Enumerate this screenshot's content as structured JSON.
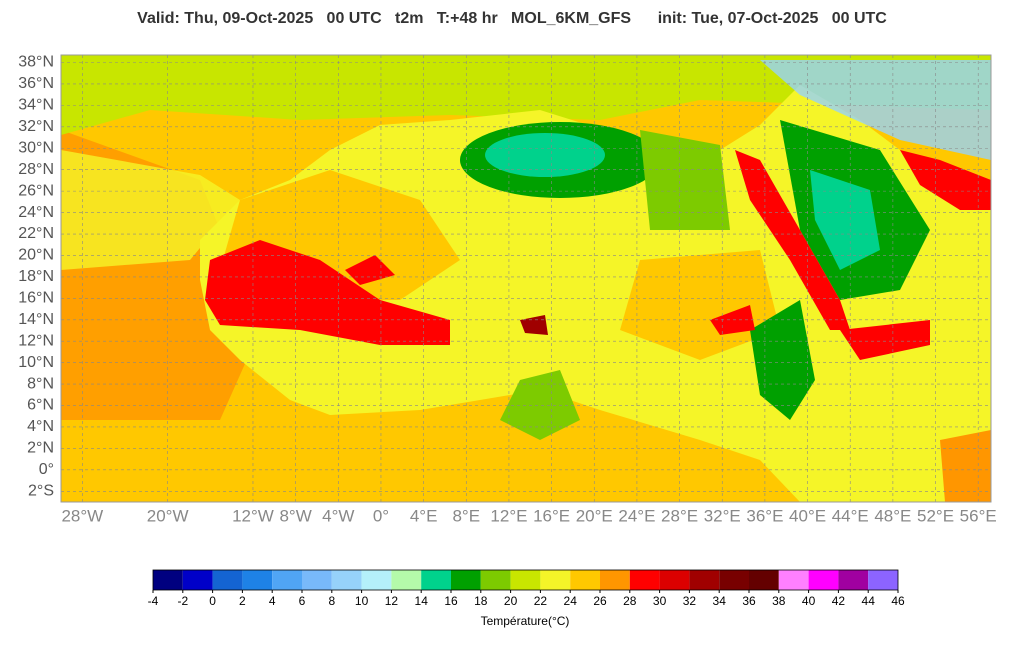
{
  "header": {
    "title": "Valid: Thu, 09-Oct-2025   00 UTC   t2m   T:+48 hr   MOL_6KM_GFS      init: Tue, 07-Oct-2025   00 UTC"
  },
  "map": {
    "lat_range": [
      -3,
      38.7
    ],
    "lon_range": [
      -30,
      57.2
    ],
    "grid": true,
    "lat_ticks": [
      {
        "value": 38,
        "label": "38°N"
      },
      {
        "value": 36,
        "label": "36°N"
      },
      {
        "value": 34,
        "label": "34°N"
      },
      {
        "value": 32,
        "label": "32°N"
      },
      {
        "value": 30,
        "label": "30°N"
      },
      {
        "value": 28,
        "label": "28°N"
      },
      {
        "value": 26,
        "label": "26°N"
      },
      {
        "value": 24,
        "label": "24°N"
      },
      {
        "value": 22,
        "label": "22°N"
      },
      {
        "value": 20,
        "label": "20°N"
      },
      {
        "value": 18,
        "label": "18°N"
      },
      {
        "value": 16,
        "label": "16°N"
      },
      {
        "value": 14,
        "label": "14°N"
      },
      {
        "value": 12,
        "label": "12°N"
      },
      {
        "value": 10,
        "label": "10°N"
      },
      {
        "value": 8,
        "label": "8°N"
      },
      {
        "value": 6,
        "label": "6°N"
      },
      {
        "value": 4,
        "label": "4°N"
      },
      {
        "value": 2,
        "label": "2°N"
      },
      {
        "value": 0,
        "label": "0°"
      },
      {
        "value": -2,
        "label": "2°S"
      }
    ],
    "lon_ticks": [
      {
        "value": -28,
        "label": "28°W"
      },
      {
        "value": -20,
        "label": "20°W"
      },
      {
        "value": -12,
        "label": "12°W"
      },
      {
        "value": -8,
        "label": "8°W"
      },
      {
        "value": -4,
        "label": "4°W"
      },
      {
        "value": 0,
        "label": "0°"
      },
      {
        "value": 4,
        "label": "4°E"
      },
      {
        "value": 8,
        "label": "8°E"
      },
      {
        "value": 12,
        "label": "12°E"
      },
      {
        "value": 16,
        "label": "16°E"
      },
      {
        "value": 20,
        "label": "20°E"
      },
      {
        "value": 24,
        "label": "24°E"
      },
      {
        "value": 28,
        "label": "28°E"
      },
      {
        "value": 32,
        "label": "32°E"
      },
      {
        "value": 36,
        "label": "36°E"
      },
      {
        "value": 40,
        "label": "40°E"
      },
      {
        "value": 44,
        "label": "44°E"
      },
      {
        "value": 48,
        "label": "48°E"
      },
      {
        "value": 52,
        "label": "52°E"
      },
      {
        "value": 56,
        "label": "56°E"
      }
    ]
  },
  "colorbar": {
    "label": "Température(°C)",
    "ticks": [
      -4,
      -2,
      0,
      2,
      4,
      6,
      8,
      10,
      12,
      14,
      16,
      18,
      20,
      22,
      24,
      26,
      28,
      30,
      32,
      34,
      36,
      38,
      40,
      42,
      44,
      46
    ],
    "colors": [
      "#000080",
      "#0000c8",
      "#1464d2",
      "#1e82e6",
      "#50a5f5",
      "#78b9fa",
      "#96d2fa",
      "#b4f0fa",
      "#b4faaa",
      "#00d28c",
      "#00a000",
      "#7dcb00",
      "#c8e600",
      "#f5f528",
      "#ffc800",
      "#ff9600",
      "#ff0000",
      "#dc0000",
      "#a00000",
      "#780000",
      "#640000",
      "#ff80ff",
      "#ff00ff",
      "#a000a0",
      "#8c64ff"
    ]
  }
}
